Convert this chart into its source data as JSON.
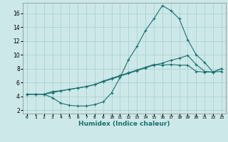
{
  "title": "",
  "xlabel": "Humidex (Indice chaleur)",
  "ylabel": "",
  "bg_color": "#cce8e8",
  "grid_color": "#aacece",
  "line_color": "#1a7070",
  "xlim": [
    -0.5,
    23.5
  ],
  "ylim": [
    1.5,
    17.5
  ],
  "xticks": [
    0,
    1,
    2,
    3,
    4,
    5,
    6,
    7,
    8,
    9,
    10,
    11,
    12,
    13,
    14,
    15,
    16,
    17,
    18,
    19,
    20,
    21,
    22,
    23
  ],
  "yticks": [
    2,
    4,
    6,
    8,
    10,
    12,
    14,
    16
  ],
  "line1_x": [
    0,
    1,
    2,
    3,
    4,
    5,
    6,
    7,
    8,
    9,
    10,
    11,
    12,
    13,
    14,
    15,
    16,
    17,
    18,
    19,
    20,
    21,
    22,
    23
  ],
  "line1_y": [
    4.3,
    4.3,
    4.3,
    4.7,
    4.8,
    5.0,
    5.2,
    5.4,
    5.7,
    6.1,
    6.5,
    6.9,
    7.3,
    7.7,
    8.1,
    8.5,
    8.8,
    9.2,
    9.5,
    9.9,
    8.6,
    7.6,
    7.5,
    8.0
  ],
  "line2_x": [
    0,
    1,
    2,
    3,
    4,
    5,
    6,
    7,
    8,
    9,
    10,
    11,
    12,
    13,
    14,
    15,
    16,
    17,
    18,
    19,
    20,
    21,
    22,
    23
  ],
  "line2_y": [
    4.3,
    4.3,
    4.3,
    3.8,
    3.0,
    2.7,
    2.6,
    2.6,
    2.8,
    3.2,
    4.5,
    6.7,
    9.3,
    11.2,
    13.5,
    15.2,
    17.1,
    16.4,
    15.2,
    12.2,
    10.0,
    8.9,
    7.5,
    7.6
  ],
  "line3_x": [
    0,
    1,
    2,
    3,
    4,
    5,
    6,
    7,
    8,
    9,
    10,
    11,
    12,
    13,
    14,
    15,
    16,
    17,
    18,
    19,
    20,
    21,
    22,
    23
  ],
  "line3_y": [
    4.3,
    4.3,
    4.3,
    4.5,
    4.8,
    5.0,
    5.2,
    5.4,
    5.7,
    6.2,
    6.6,
    7.0,
    7.4,
    7.8,
    8.2,
    8.6,
    8.5,
    8.6,
    8.5,
    8.5,
    7.6,
    7.5,
    7.5,
    8.0
  ]
}
